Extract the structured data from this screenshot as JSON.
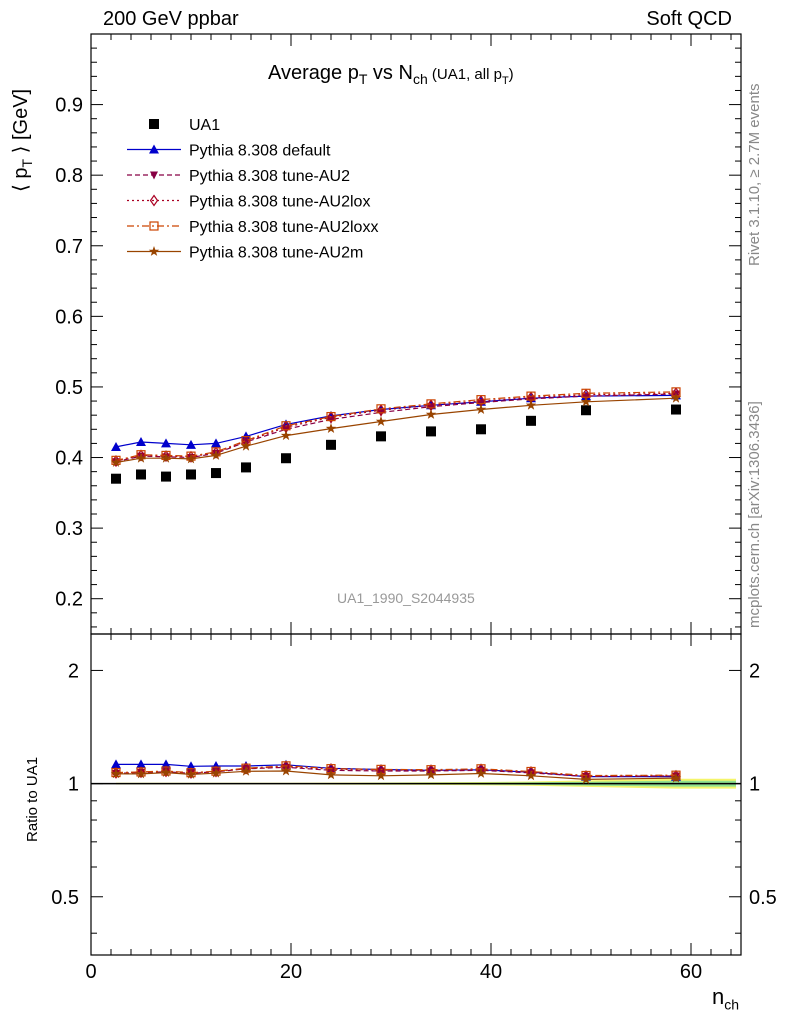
{
  "header": {
    "left": "200 GeV ppbar",
    "right": "Soft QCD"
  },
  "side_text": {
    "top": "Rivet 3.1.10, ≥ 2.7M events",
    "bottom": "mcplots.cern.ch [arXiv:1306.3436]"
  },
  "title_parts": {
    "main": "Average p",
    "sub1": "T",
    "mid": " vs N",
    "sub2": "ch",
    "paren": " (UA1, all p",
    "sub3": "T",
    "close": ")"
  },
  "watermark": "UA1_1990_S2044935",
  "y_label_main": {
    "a": "⟨ p",
    "sub": "T",
    "b": " ⟩ [GeV]"
  },
  "y_label_ratio": "Ratio to UA1",
  "x_label": {
    "base": "n",
    "sub": "ch"
  },
  "colors": {
    "data": "#000000",
    "default": "#0000cc",
    "au2": "#880044",
    "au2lox": "#aa0022",
    "au2loxx": "#cc4400",
    "au2m": "#994400",
    "band_yellow": "#f5f56a",
    "band_green": "#8fe08f"
  },
  "chart_data": [
    {
      "type": "scatter",
      "title": "Average pT vs Nch (UA1, all pT)",
      "xlabel": "n_ch",
      "ylabel": "⟨ pT ⟩ [GeV]",
      "xlim": [
        0,
        65
      ],
      "ylim": [
        0.15,
        1.0
      ],
      "x_ticks": [
        0,
        20,
        40,
        60
      ],
      "y_ticks": [
        0.2,
        0.3,
        0.4,
        0.5,
        0.6,
        0.7,
        0.8,
        0.9
      ],
      "legend_position": "top-left",
      "series": [
        {
          "name": "UA1",
          "key": "data",
          "marker": "square",
          "line": "none",
          "x": [
            2.5,
            5,
            7.5,
            10,
            12.5,
            15.5,
            19.5,
            24,
            29,
            34,
            39,
            44,
            49.5,
            58.5
          ],
          "y": [
            0.37,
            0.376,
            0.373,
            0.376,
            0.378,
            0.386,
            0.399,
            0.418,
            0.43,
            0.437,
            0.44,
            0.452,
            0.467,
            0.468
          ]
        },
        {
          "name": "Pythia 8.308 default",
          "key": "default",
          "marker": "triangle-up",
          "line": "solid",
          "x": [
            2.5,
            5,
            7.5,
            10,
            12.5,
            15.5,
            19.5,
            24,
            29,
            34,
            39,
            44,
            49.5,
            58.5
          ],
          "y": [
            0.415,
            0.422,
            0.42,
            0.418,
            0.42,
            0.43,
            0.447,
            0.459,
            0.468,
            0.474,
            0.479,
            0.484,
            0.487,
            0.488
          ]
        },
        {
          "name": "Pythia 8.308 tune-AU2",
          "key": "au2",
          "marker": "triangle-down",
          "line": "dashed",
          "x": [
            2.5,
            5,
            7.5,
            10,
            12.5,
            15.5,
            19.5,
            24,
            29,
            34,
            39,
            44,
            49.5,
            58.5
          ],
          "y": [
            0.394,
            0.402,
            0.401,
            0.4,
            0.406,
            0.422,
            0.44,
            0.454,
            0.464,
            0.472,
            0.478,
            0.483,
            0.487,
            0.49
          ]
        },
        {
          "name": "Pythia 8.308 tune-AU2lox",
          "key": "au2lox",
          "marker": "diamond-open",
          "line": "dotted",
          "x": [
            2.5,
            5,
            7.5,
            10,
            12.5,
            15.5,
            19.5,
            24,
            29,
            34,
            39,
            44,
            49.5,
            58.5
          ],
          "y": [
            0.395,
            0.403,
            0.402,
            0.401,
            0.407,
            0.423,
            0.443,
            0.457,
            0.467,
            0.474,
            0.48,
            0.485,
            0.489,
            0.491
          ]
        },
        {
          "name": "Pythia 8.308 tune-AU2loxx",
          "key": "au2loxx",
          "marker": "square-open",
          "line": "dashdot",
          "x": [
            2.5,
            5,
            7.5,
            10,
            12.5,
            15.5,
            19.5,
            24,
            29,
            34,
            39,
            44,
            49.5,
            58.5
          ],
          "y": [
            0.396,
            0.404,
            0.403,
            0.402,
            0.408,
            0.424,
            0.445,
            0.458,
            0.469,
            0.476,
            0.482,
            0.487,
            0.491,
            0.493
          ]
        },
        {
          "name": "Pythia 8.308 tune-AU2m",
          "key": "au2m",
          "marker": "star",
          "line": "solid",
          "x": [
            2.5,
            5,
            7.5,
            10,
            12.5,
            15.5,
            19.5,
            24,
            29,
            34,
            39,
            44,
            49.5,
            58.5
          ],
          "y": [
            0.393,
            0.399,
            0.399,
            0.398,
            0.403,
            0.416,
            0.431,
            0.441,
            0.451,
            0.461,
            0.468,
            0.474,
            0.479,
            0.484
          ]
        }
      ]
    },
    {
      "type": "line",
      "title": "",
      "xlabel": "n_ch",
      "ylabel": "Ratio to UA1",
      "xlim": [
        0,
        65
      ],
      "ylim": [
        0.35,
        2.5
      ],
      "y_scale": "log",
      "y_ticks": [
        0.5,
        1,
        2
      ],
      "reference_line": 1,
      "band": {
        "x": [
          2.5,
          5,
          7.5,
          10,
          12.5,
          15.5,
          19.5,
          24,
          29,
          34,
          39,
          44,
          49.5,
          58.5,
          64.5
        ],
        "yellow_half_width": [
          0.005,
          0.005,
          0.005,
          0.005,
          0.005,
          0.005,
          0.005,
          0.006,
          0.007,
          0.008,
          0.01,
          0.013,
          0.02,
          0.03,
          0.03
        ],
        "green_half_width": [
          0.002,
          0.002,
          0.002,
          0.002,
          0.002,
          0.002,
          0.002,
          0.003,
          0.004,
          0.005,
          0.006,
          0.008,
          0.012,
          0.018,
          0.018
        ]
      },
      "series": [
        {
          "name": "Pythia 8.308 default",
          "key": "default",
          "marker": "triangle-up",
          "line": "solid",
          "x": [
            2.5,
            5,
            7.5,
            10,
            12.5,
            15.5,
            19.5,
            24,
            29,
            34,
            39,
            44,
            49.5,
            58.5
          ],
          "y": [
            1.125,
            1.125,
            1.125,
            1.112,
            1.114,
            1.114,
            1.122,
            1.098,
            1.09,
            1.085,
            1.088,
            1.072,
            1.044,
            1.043
          ]
        },
        {
          "name": "Pythia 8.308 tune-AU2",
          "key": "au2",
          "marker": "triangle-down",
          "line": "dashed",
          "x": [
            2.5,
            5,
            7.5,
            10,
            12.5,
            15.5,
            19.5,
            24,
            29,
            34,
            39,
            44,
            49.5,
            58.5
          ],
          "y": [
            1.065,
            1.07,
            1.075,
            1.065,
            1.075,
            1.095,
            1.105,
            1.085,
            1.08,
            1.08,
            1.085,
            1.068,
            1.045,
            1.048
          ]
        },
        {
          "name": "Pythia 8.308 tune-AU2lox",
          "key": "au2lox",
          "marker": "diamond-open",
          "line": "dotted",
          "x": [
            2.5,
            5,
            7.5,
            10,
            12.5,
            15.5,
            19.5,
            24,
            29,
            34,
            39,
            44,
            49.5,
            58.5
          ],
          "y": [
            1.068,
            1.072,
            1.078,
            1.067,
            1.077,
            1.097,
            1.11,
            1.093,
            1.086,
            1.085,
            1.091,
            1.073,
            1.047,
            1.049
          ]
        },
        {
          "name": "Pythia 8.308 tune-AU2loxx",
          "key": "au2loxx",
          "marker": "square-open",
          "line": "dashdot",
          "x": [
            2.5,
            5,
            7.5,
            10,
            12.5,
            15.5,
            19.5,
            24,
            29,
            34,
            39,
            44,
            49.5,
            58.5
          ],
          "y": [
            1.07,
            1.074,
            1.08,
            1.069,
            1.079,
            1.099,
            1.115,
            1.096,
            1.091,
            1.089,
            1.095,
            1.077,
            1.051,
            1.053
          ]
        },
        {
          "name": "Pythia 8.308 tune-AU2m",
          "key": "au2m",
          "marker": "star",
          "line": "solid",
          "x": [
            2.5,
            5,
            7.5,
            10,
            12.5,
            15.5,
            19.5,
            24,
            29,
            34,
            39,
            44,
            49.5,
            58.5
          ],
          "y": [
            1.062,
            1.061,
            1.07,
            1.058,
            1.066,
            1.078,
            1.08,
            1.055,
            1.049,
            1.055,
            1.064,
            1.049,
            1.026,
            1.034
          ]
        }
      ]
    }
  ]
}
